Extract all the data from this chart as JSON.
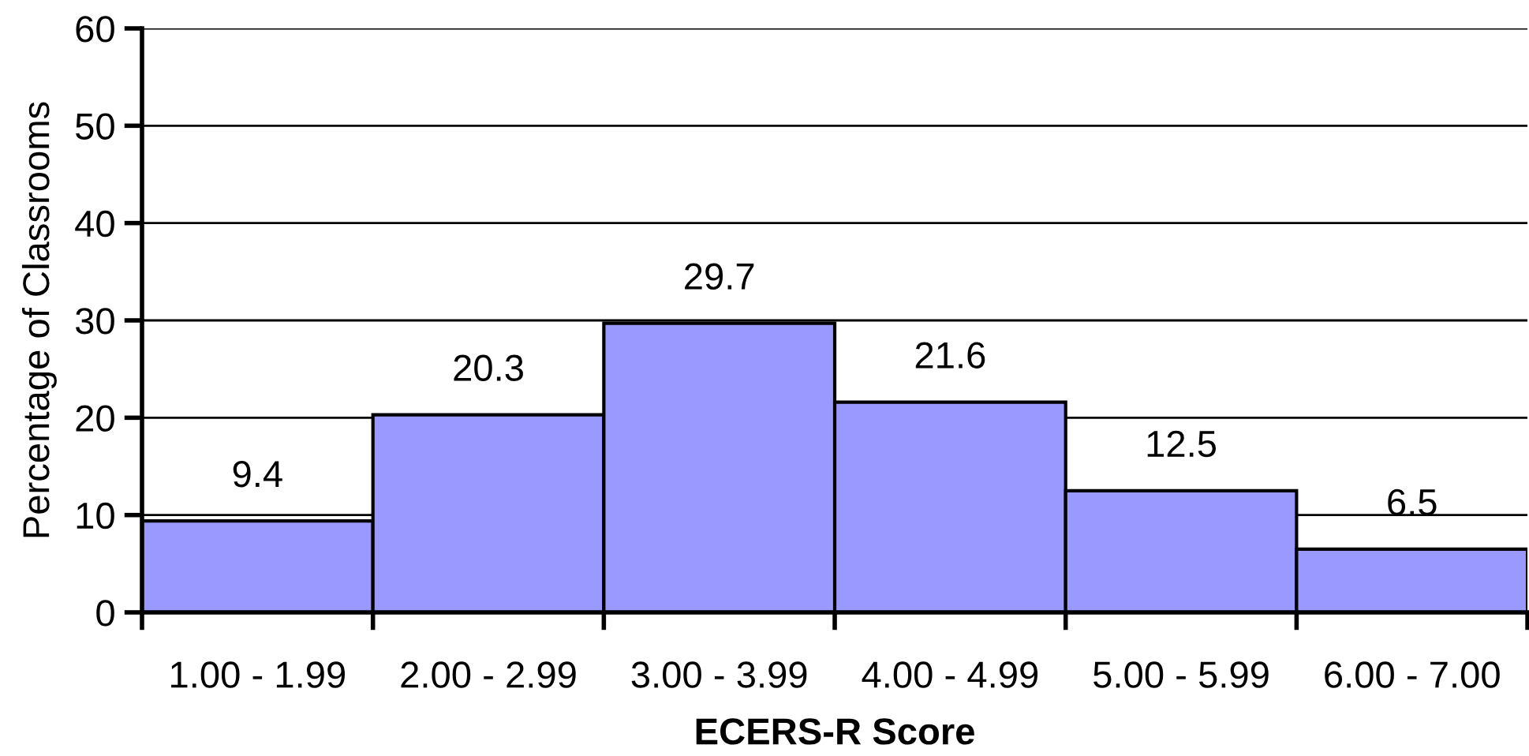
{
  "chart_data": {
    "type": "bar",
    "xlabel": "ECERS-R Score",
    "ylabel": "Percentage of Classrooms",
    "categories": [
      "1.00 - 1.99",
      "2.00 - 2.99",
      "3.00 - 3.99",
      "4.00 - 4.99",
      "5.00 - 5.99",
      "6.00 - 7.00"
    ],
    "values": [
      9.4,
      20.3,
      29.7,
      21.6,
      12.5,
      6.5
    ],
    "color": "#9999ff",
    "ylim": [
      0,
      60
    ],
    "yticks": [
      0,
      10,
      20,
      30,
      40,
      50,
      60
    ],
    "grid": "y",
    "data_labels": true
  }
}
